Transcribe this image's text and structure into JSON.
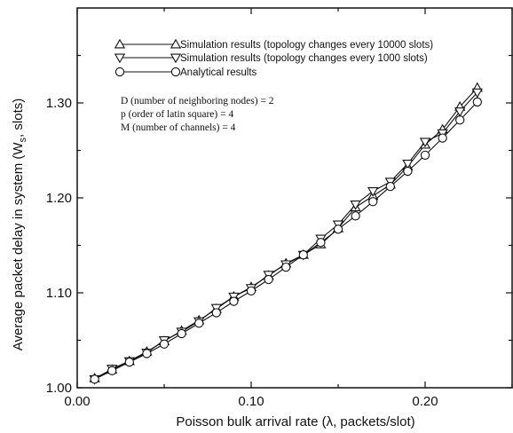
{
  "chart_data": {
    "type": "line",
    "title": "",
    "xlabel": "Poisson bulk arrival rate (λ, packets/slot)",
    "ylabel_main": "Average packet delay in system (W",
    "ylabel_sub": "s",
    "ylabel_tail": ", slots)",
    "xlim": [
      0.0,
      0.25
    ],
    "ylim": [
      1.0,
      1.4
    ],
    "x_ticks": [
      0.0,
      0.05,
      0.1,
      0.15,
      0.2,
      0.25
    ],
    "x_tick_labels": [
      "0.00",
      "",
      "0.10",
      "",
      "0.20",
      ""
    ],
    "y_ticks": [
      1.0,
      1.05,
      1.1,
      1.15,
      1.2,
      1.25,
      1.3,
      1.35
    ],
    "y_tick_labels": [
      "1.00",
      "",
      "1.10",
      "",
      "1.20",
      "",
      "1.30",
      ""
    ],
    "grid": false,
    "legend_position": "top-center",
    "x": [
      0.01,
      0.02,
      0.03,
      0.04,
      0.05,
      0.06,
      0.07,
      0.08,
      0.09,
      0.1,
      0.11,
      0.12,
      0.13,
      0.14,
      0.15,
      0.16,
      0.17,
      0.18,
      0.19,
      0.2,
      0.21,
      0.22,
      0.23
    ],
    "series": [
      {
        "name": "Simulation results (topology changes every 10000 slots)",
        "marker": "triangle-up",
        "values": [
          1.01,
          1.019,
          1.028,
          1.038,
          1.049,
          1.06,
          1.071,
          1.083,
          1.096,
          1.106,
          1.118,
          1.131,
          1.14,
          1.151,
          1.168,
          1.19,
          1.202,
          1.214,
          1.233,
          1.256,
          1.272,
          1.296,
          1.316
        ]
      },
      {
        "name": "Simulation results (topology changes every 1000 slots)",
        "marker": "triangle-down",
        "values": [
          1.009,
          1.02,
          1.028,
          1.037,
          1.05,
          1.059,
          1.07,
          1.084,
          1.096,
          1.105,
          1.119,
          1.13,
          1.14,
          1.157,
          1.172,
          1.193,
          1.207,
          1.217,
          1.236,
          1.259,
          1.268,
          1.291,
          1.311
        ]
      },
      {
        "name": "Analytical results",
        "marker": "circle",
        "values": [
          1.009,
          1.018,
          1.027,
          1.036,
          1.046,
          1.057,
          1.068,
          1.079,
          1.091,
          1.102,
          1.114,
          1.127,
          1.14,
          1.153,
          1.167,
          1.181,
          1.196,
          1.212,
          1.228,
          1.245,
          1.263,
          1.282,
          1.301
        ]
      }
    ],
    "annotations": [
      "D (number of neighboring nodes) = 2",
      "p (order of latin square) = 4",
      "M (number of channels) = 4"
    ]
  }
}
